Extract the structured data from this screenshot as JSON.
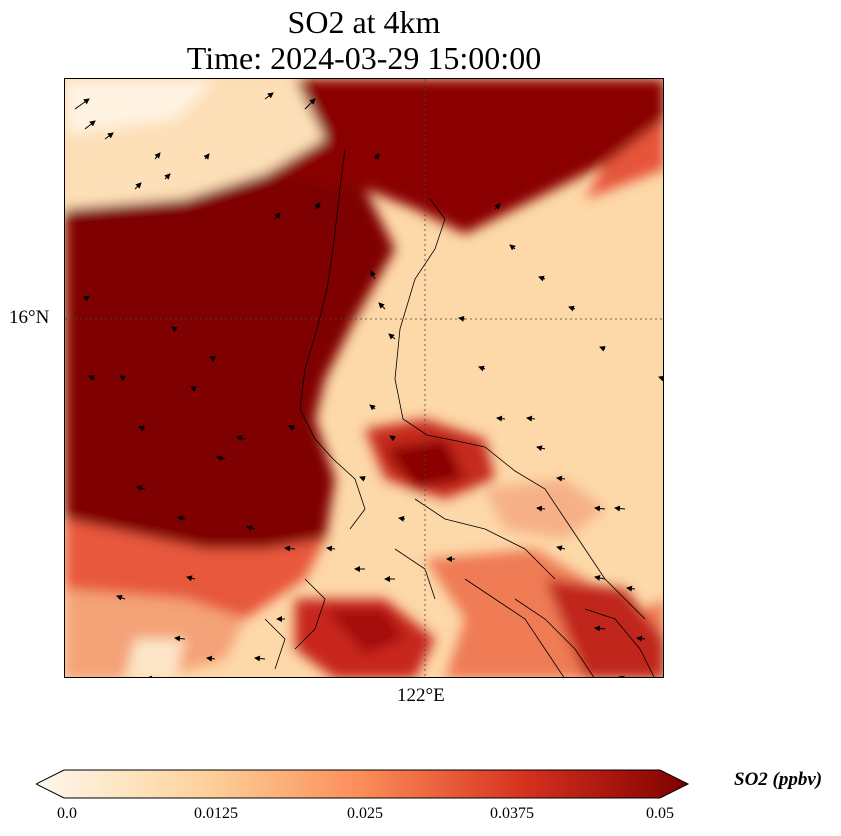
{
  "title": {
    "line1": "SO2 at 4km",
    "line2": "Time: 2024-03-29 15:00:00"
  },
  "map": {
    "lat_label": "16°N",
    "lon_label": "122°E",
    "gridlines": "dotted",
    "coastlines": true,
    "wind_vectors": true
  },
  "colorbar": {
    "label": "SO2 (ppbv)",
    "ticks": [
      "0.0",
      "0.0125",
      "0.025",
      "0.0375",
      "0.05"
    ],
    "range": [
      0.0,
      0.05
    ],
    "extend": "both",
    "colormap": "OrRd",
    "colors": [
      "#fff7ec",
      "#fdd49e",
      "#fc8d59",
      "#d7301f",
      "#7f0000"
    ]
  }
}
